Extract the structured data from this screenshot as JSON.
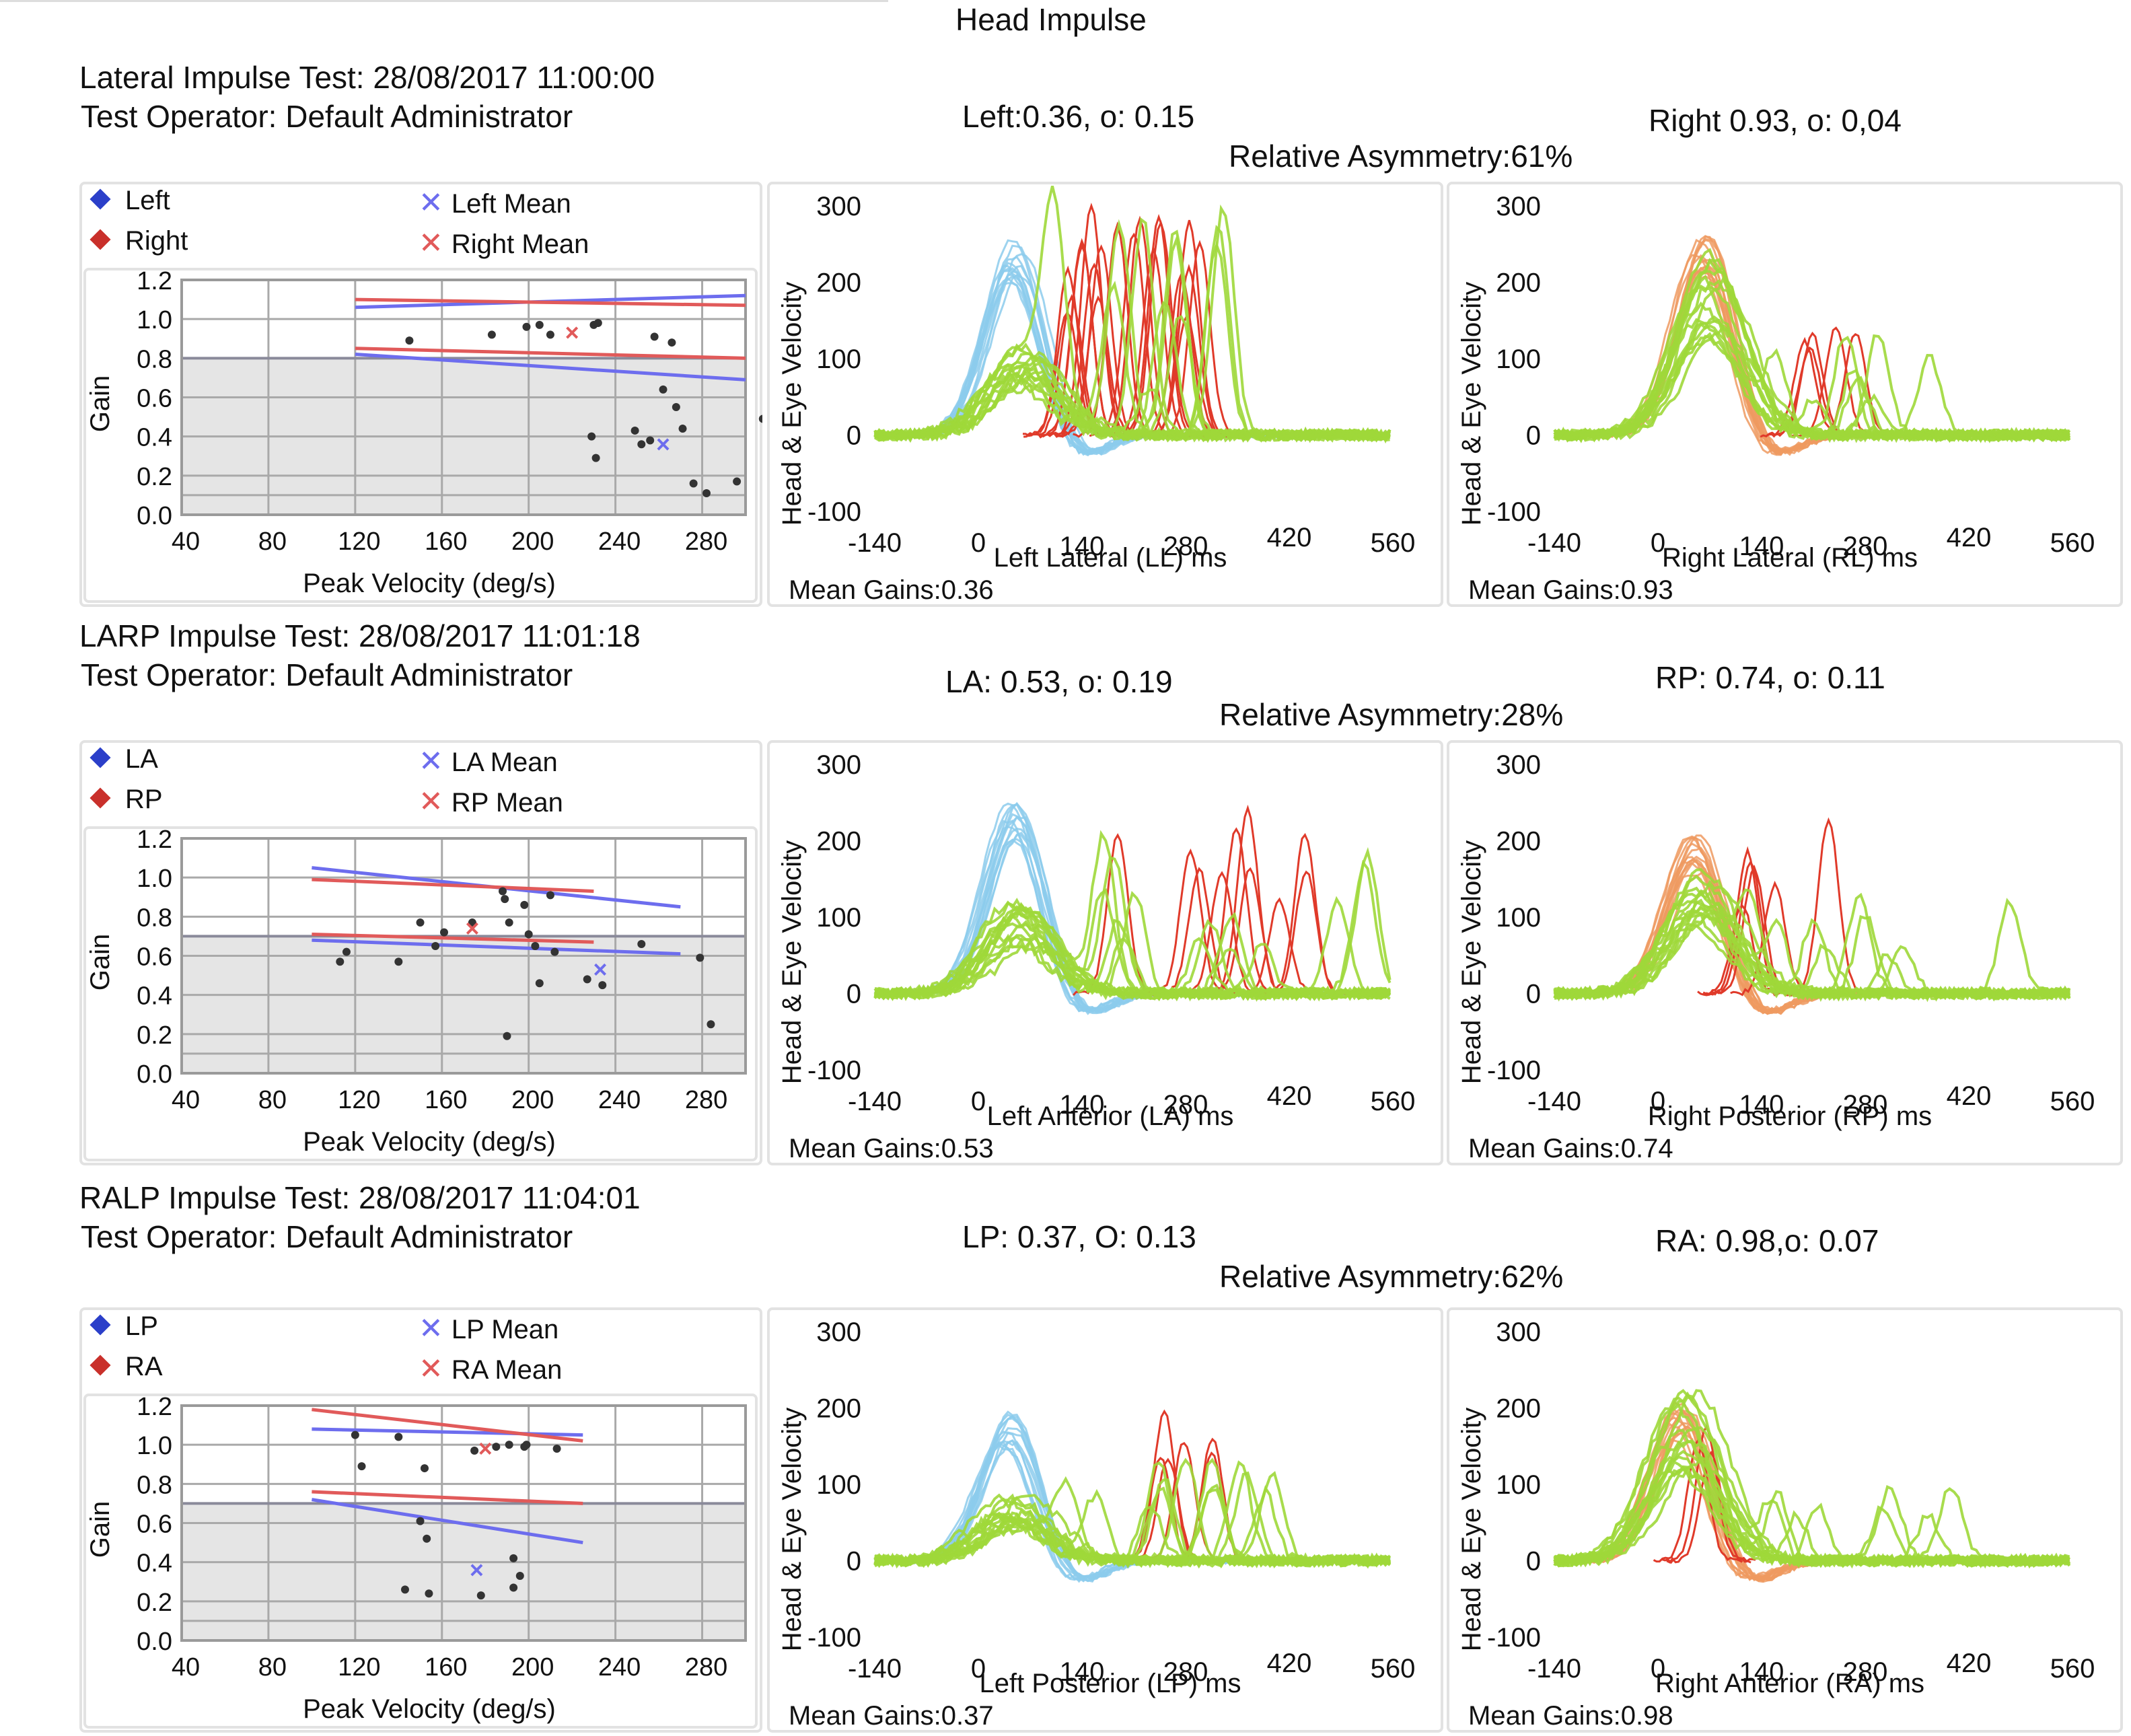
{
  "title": "Head Impulse",
  "axis_labels": {
    "scatter_x": "Peak Velocity (deg/s)",
    "scatter_y": "Gain",
    "trace_y": "Head & Eye Velocity"
  },
  "tick_labels": {
    "scatter_x": [
      "40",
      "80",
      "120",
      "160",
      "200",
      "240",
      "280"
    ],
    "scatter_y": [
      "0.0",
      "0.2",
      "0.4",
      "0.6",
      "0.8",
      "1.0",
      "1.2"
    ],
    "trace_x": [
      "-140",
      "0",
      "140",
      "280",
      "420",
      "560"
    ],
    "trace_y": [
      "300",
      "200",
      "100",
      "0",
      "-100"
    ]
  },
  "colors": {
    "left_blue": "#2b3fc9",
    "right_red": "#c9302b",
    "blue_line": "#6d6dee",
    "red_line": "#e15a5a",
    "head_blue": "#8ccbec",
    "head_orange": "#ee9a60",
    "eye_green": "#9fd83a",
    "saccade_red": "#e03a2a",
    "grid_fill": "#e5e5e5"
  },
  "sections": [
    {
      "test_title": "Lateral Impulse Test: 28/08/2017 11:00:00",
      "operator": "Test Operator: Default Administrator",
      "left_stat": "Left:0.36, o: 0.15",
      "right_stat": "Right 0.93, o: 0,04",
      "asymmetry": "Relative Asymmetry:61%",
      "legend": {
        "a": "Left",
        "b": "Right",
        "a_mean": "Left Mean",
        "b_mean": "Right Mean"
      },
      "left_trace_xlabel": "Left Lateral (LL) ms",
      "right_trace_xlabel": "Right Lateral (RL) ms",
      "left_mean_gain": "Mean Gains:0.36",
      "right_mean_gain": "Mean Gains:0.93"
    },
    {
      "test_title": "LARP Impulse Test: 28/08/2017 11:01:18",
      "operator": "Test Operator: Default Administrator",
      "left_stat": "LA: 0.53, o: 0.19",
      "right_stat": "RP: 0.74, o: 0.11",
      "asymmetry": "Relative Asymmetry:28%",
      "legend": {
        "a": "LA",
        "b": "RP",
        "a_mean": "LA Mean",
        "b_mean": "RP Mean"
      },
      "left_trace_xlabel": "Left Anterior (LA) ms",
      "right_trace_xlabel": "Right Posterior (RP) ms",
      "left_mean_gain": "Mean Gains:0.53",
      "right_mean_gain": "Mean Gains:0.74"
    },
    {
      "test_title": "RALP Impulse Test: 28/08/2017 11:04:01",
      "operator": "Test Operator: Default Administrator",
      "left_stat": "LP: 0.37, O: 0.13",
      "right_stat": "RA: 0.98,o: 0.07",
      "asymmetry": "Relative Asymmetry:62%",
      "legend": {
        "a": "LP",
        "b": "RA",
        "a_mean": "LP Mean",
        "b_mean": "RA Mean"
      },
      "left_trace_xlabel": "Left Posterior (LP) ms",
      "right_trace_xlabel": "Right Anterior (RA) ms",
      "left_mean_gain": "Mean Gains:0.37",
      "right_mean_gain": "Mean Gains:0.98"
    }
  ],
  "chart_data": [
    {
      "type": "scatter",
      "section": 0,
      "xlabel": "Peak Velocity (deg/s)",
      "ylabel": "Gain",
      "xlim": [
        40,
        300
      ],
      "ylim": [
        0,
        1.2
      ],
      "normal_threshold": 0.8,
      "points": [
        [
          145,
          0.89
        ],
        [
          183,
          0.92
        ],
        [
          199,
          0.96
        ],
        [
          205,
          0.97
        ],
        [
          210,
          0.92
        ],
        [
          230,
          0.97
        ],
        [
          232,
          0.98
        ],
        [
          258,
          0.91
        ],
        [
          266,
          0.88
        ],
        [
          229,
          0.4
        ],
        [
          231,
          0.29
        ],
        [
          252,
          0.36
        ],
        [
          256,
          0.38
        ],
        [
          262,
          0.64
        ],
        [
          268,
          0.55
        ],
        [
          271,
          0.44
        ],
        [
          276,
          0.16
        ],
        [
          282,
          0.11
        ],
        [
          296,
          0.17
        ],
        [
          308,
          0.49
        ],
        [
          249,
          0.43
        ]
      ],
      "means": [
        {
          "x": 262,
          "y": 0.36,
          "series": "blue"
        },
        {
          "x": 220,
          "y": 0.93,
          "series": "red"
        }
      ],
      "reference_lines": [
        {
          "color": "blue",
          "points": [
            [
              120,
              1.06
            ],
            [
              300,
              1.12
            ]
          ]
        },
        {
          "color": "blue",
          "points": [
            [
              120,
              0.82
            ],
            [
              300,
              0.69
            ]
          ]
        },
        {
          "color": "red",
          "points": [
            [
              120,
              1.1
            ],
            [
              300,
              1.07
            ]
          ]
        },
        {
          "color": "red",
          "points": [
            [
              120,
              0.85
            ],
            [
              300,
              0.8
            ]
          ]
        }
      ]
    },
    {
      "type": "scatter",
      "section": 1,
      "xlabel": "Peak Velocity (deg/s)",
      "ylabel": "Gain",
      "xlim": [
        40,
        300
      ],
      "ylim": [
        0,
        1.2
      ],
      "normal_threshold": 0.7,
      "points": [
        [
          113,
          0.57
        ],
        [
          116,
          0.62
        ],
        [
          140,
          0.57
        ],
        [
          150,
          0.77
        ],
        [
          157,
          0.65
        ],
        [
          161,
          0.72
        ],
        [
          174,
          0.77
        ],
        [
          188,
          0.93
        ],
        [
          189,
          0.89
        ],
        [
          191,
          0.77
        ],
        [
          190,
          0.19
        ],
        [
          198,
          0.86
        ],
        [
          200,
          0.71
        ],
        [
          203,
          0.65
        ],
        [
          205,
          0.46
        ],
        [
          210,
          0.91
        ],
        [
          212,
          0.62
        ],
        [
          227,
          0.48
        ],
        [
          234,
          0.45
        ],
        [
          252,
          0.66
        ],
        [
          279,
          0.59
        ],
        [
          284,
          0.25
        ]
      ],
      "means": [
        {
          "x": 233,
          "y": 0.53,
          "series": "blue"
        },
        {
          "x": 174,
          "y": 0.74,
          "series": "red"
        }
      ],
      "reference_lines": [
        {
          "color": "blue",
          "points": [
            [
              100,
              1.05
            ],
            [
              270,
              0.85
            ]
          ]
        },
        {
          "color": "blue",
          "points": [
            [
              100,
              0.68
            ],
            [
              270,
              0.61
            ]
          ]
        },
        {
          "color": "red",
          "points": [
            [
              100,
              0.99
            ],
            [
              230,
              0.93
            ]
          ]
        },
        {
          "color": "red",
          "points": [
            [
              100,
              0.71
            ],
            [
              230,
              0.67
            ]
          ]
        }
      ]
    },
    {
      "type": "scatter",
      "section": 2,
      "xlabel": "Peak Velocity (deg/s)",
      "ylabel": "Gain",
      "xlim": [
        40,
        300
      ],
      "ylim": [
        0,
        1.2
      ],
      "normal_threshold": 0.7,
      "points": [
        [
          120,
          1.05
        ],
        [
          123,
          0.89
        ],
        [
          140,
          1.04
        ],
        [
          143,
          0.26
        ],
        [
          150,
          0.61
        ],
        [
          152,
          0.88
        ],
        [
          153,
          0.52
        ],
        [
          154,
          0.24
        ],
        [
          175,
          0.97
        ],
        [
          178,
          0.23
        ],
        [
          185,
          0.99
        ],
        [
          191,
          1.0
        ],
        [
          193,
          0.42
        ],
        [
          193,
          0.27
        ],
        [
          196,
          0.33
        ],
        [
          198,
          0.99
        ],
        [
          199,
          1.0
        ],
        [
          213,
          0.98
        ]
      ],
      "means": [
        {
          "x": 176,
          "y": 0.36,
          "series": "blue"
        },
        {
          "x": 180,
          "y": 0.98,
          "series": "red"
        }
      ],
      "reference_lines": [
        {
          "color": "blue",
          "points": [
            [
              100,
              1.08
            ],
            [
              225,
              1.05
            ]
          ]
        },
        {
          "color": "blue",
          "points": [
            [
              100,
              0.72
            ],
            [
              225,
              0.5
            ]
          ]
        },
        {
          "color": "red",
          "points": [
            [
              100,
              1.18
            ],
            [
              225,
              1.02
            ]
          ]
        },
        {
          "color": "red",
          "points": [
            [
              100,
              0.76
            ],
            [
              225,
              0.7
            ]
          ]
        }
      ]
    },
    {
      "type": "line",
      "section": 0,
      "side": "left",
      "xlabel": "Left Lateral (LL) ms",
      "ylabel": "Head & Eye Velocity",
      "xlim": [
        -140,
        560
      ],
      "ylim": [
        -100,
        300
      ],
      "head_peak": 260,
      "head_peak_t": 50,
      "head_color": "blue",
      "eye_peak_mean": 100,
      "saccades": {
        "count": 20,
        "t_range": [
          90,
          300
        ],
        "amp_range": [
          150,
          300
        ],
        "color": "red"
      },
      "late_saccades": {
        "count": 12,
        "t_range": [
          100,
          360
        ],
        "amp_range": [
          60,
          300
        ],
        "color": "green"
      }
    },
    {
      "type": "line",
      "section": 0,
      "side": "right",
      "xlabel": "Right Lateral (RL) ms",
      "ylabel": "Head & Eye Velocity",
      "xlim": [
        -140,
        560
      ],
      "ylim": [
        -100,
        300
      ],
      "head_peak": 270,
      "head_peak_t": 60,
      "head_color": "orange",
      "eye_peak_mean": 200,
      "saccades": {
        "count": 5,
        "t_range": [
          180,
          270
        ],
        "amp_range": [
          80,
          150
        ],
        "color": "red"
      },
      "late_saccades": {
        "count": 8,
        "t_range": [
          160,
          380
        ],
        "amp_range": [
          40,
          140
        ],
        "color": "green"
      }
    },
    {
      "type": "line",
      "section": 1,
      "side": "left",
      "xlabel": "Left Anterior (LA) ms",
      "ylabel": "Head & Eye Velocity",
      "xlim": [
        -140,
        560
      ],
      "ylim": [
        -100,
        300
      ],
      "head_peak": 270,
      "head_peak_t": 50,
      "head_color": "blue",
      "eye_peak_mean": 100,
      "saccades": {
        "count": 10,
        "t_range": [
          130,
          450
        ],
        "amp_range": [
          120,
          250
        ],
        "color": "red"
      },
      "late_saccades": {
        "count": 14,
        "t_range": [
          100,
          530
        ],
        "amp_range": [
          60,
          200
        ],
        "color": "green"
      }
    },
    {
      "type": "line",
      "section": 1,
      "side": "right",
      "xlabel": "Right Posterior (RP) ms",
      "ylabel": "Head & Eye Velocity",
      "xlim": [
        -140,
        560
      ],
      "ylim": [
        -100,
        300
      ],
      "head_peak": 210,
      "head_peak_t": 50,
      "head_color": "orange",
      "eye_peak_mean": 140,
      "saccades": {
        "count": 6,
        "t_range": [
          90,
          300
        ],
        "amp_range": [
          100,
          230
        ],
        "color": "red"
      },
      "late_saccades": {
        "count": 9,
        "t_range": [
          120,
          500
        ],
        "amp_range": [
          40,
          150
        ],
        "color": "green"
      }
    },
    {
      "type": "line",
      "section": 2,
      "side": "left",
      "xlabel": "Left Posterior (LP) ms",
      "ylabel": "Head & Eye Velocity",
      "xlim": [
        -140,
        560
      ],
      "ylim": [
        -100,
        300
      ],
      "head_peak": 200,
      "head_peak_t": 40,
      "head_color": "blue",
      "eye_peak_mean": 70,
      "saccades": {
        "count": 6,
        "t_range": [
          200,
          330
        ],
        "amp_range": [
          120,
          200
        ],
        "color": "red"
      },
      "late_saccades": {
        "count": 14,
        "t_range": [
          100,
          400
        ],
        "amp_range": [
          60,
          160
        ],
        "color": "green"
      }
    },
    {
      "type": "line",
      "section": 2,
      "side": "right",
      "xlabel": "Right Anterior (RA) ms",
      "ylabel": "Head & Eye Velocity",
      "xlim": [
        -140,
        560
      ],
      "ylim": [
        -100,
        300
      ],
      "head_peak": 210,
      "head_peak_t": 30,
      "head_color": "orange",
      "eye_peak_mean": 190,
      "saccades": {
        "count": 3,
        "t_range": [
          20,
          80
        ],
        "amp_range": [
          100,
          180
        ],
        "color": "red"
      },
      "late_saccades": {
        "count": 8,
        "t_range": [
          150,
          420
        ],
        "amp_range": [
          30,
          100
        ],
        "color": "green"
      }
    }
  ]
}
